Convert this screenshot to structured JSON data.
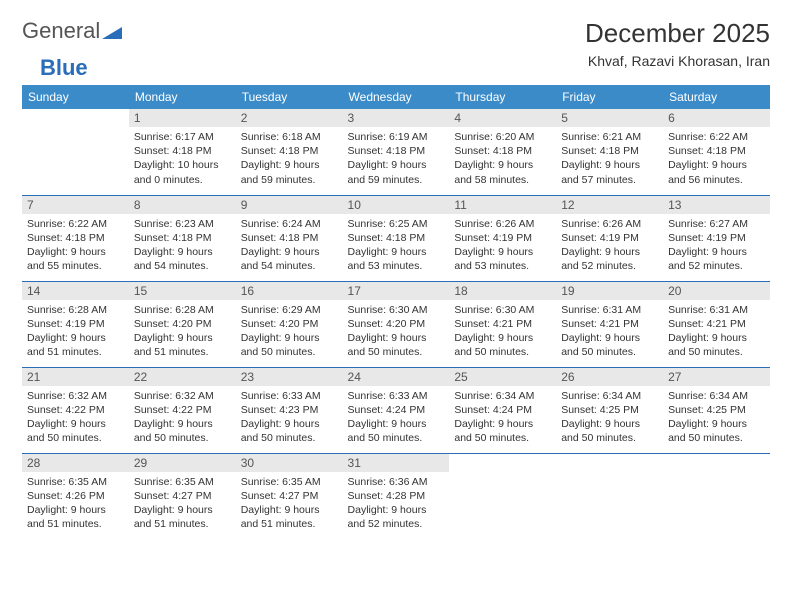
{
  "brand": {
    "part1": "General",
    "part2": "Blue"
  },
  "header": {
    "title": "December 2025",
    "location": "Khvaf, Razavi Khorasan, Iran"
  },
  "colors": {
    "header_bg": "#3b8bc9",
    "row_divider": "#2a6db8",
    "daynum_bg": "#e8e8e8",
    "text": "#333333"
  },
  "calendar": {
    "type": "table",
    "columns": [
      "Sunday",
      "Monday",
      "Tuesday",
      "Wednesday",
      "Thursday",
      "Friday",
      "Saturday"
    ],
    "weeks": [
      [
        null,
        {
          "n": "1",
          "sunrise": "6:17 AM",
          "sunset": "4:18 PM",
          "daylight": "10 hours and 0 minutes."
        },
        {
          "n": "2",
          "sunrise": "6:18 AM",
          "sunset": "4:18 PM",
          "daylight": "9 hours and 59 minutes."
        },
        {
          "n": "3",
          "sunrise": "6:19 AM",
          "sunset": "4:18 PM",
          "daylight": "9 hours and 59 minutes."
        },
        {
          "n": "4",
          "sunrise": "6:20 AM",
          "sunset": "4:18 PM",
          "daylight": "9 hours and 58 minutes."
        },
        {
          "n": "5",
          "sunrise": "6:21 AM",
          "sunset": "4:18 PM",
          "daylight": "9 hours and 57 minutes."
        },
        {
          "n": "6",
          "sunrise": "6:22 AM",
          "sunset": "4:18 PM",
          "daylight": "9 hours and 56 minutes."
        }
      ],
      [
        {
          "n": "7",
          "sunrise": "6:22 AM",
          "sunset": "4:18 PM",
          "daylight": "9 hours and 55 minutes."
        },
        {
          "n": "8",
          "sunrise": "6:23 AM",
          "sunset": "4:18 PM",
          "daylight": "9 hours and 54 minutes."
        },
        {
          "n": "9",
          "sunrise": "6:24 AM",
          "sunset": "4:18 PM",
          "daylight": "9 hours and 54 minutes."
        },
        {
          "n": "10",
          "sunrise": "6:25 AM",
          "sunset": "4:18 PM",
          "daylight": "9 hours and 53 minutes."
        },
        {
          "n": "11",
          "sunrise": "6:26 AM",
          "sunset": "4:19 PM",
          "daylight": "9 hours and 53 minutes."
        },
        {
          "n": "12",
          "sunrise": "6:26 AM",
          "sunset": "4:19 PM",
          "daylight": "9 hours and 52 minutes."
        },
        {
          "n": "13",
          "sunrise": "6:27 AM",
          "sunset": "4:19 PM",
          "daylight": "9 hours and 52 minutes."
        }
      ],
      [
        {
          "n": "14",
          "sunrise": "6:28 AM",
          "sunset": "4:19 PM",
          "daylight": "9 hours and 51 minutes."
        },
        {
          "n": "15",
          "sunrise": "6:28 AM",
          "sunset": "4:20 PM",
          "daylight": "9 hours and 51 minutes."
        },
        {
          "n": "16",
          "sunrise": "6:29 AM",
          "sunset": "4:20 PM",
          "daylight": "9 hours and 50 minutes."
        },
        {
          "n": "17",
          "sunrise": "6:30 AM",
          "sunset": "4:20 PM",
          "daylight": "9 hours and 50 minutes."
        },
        {
          "n": "18",
          "sunrise": "6:30 AM",
          "sunset": "4:21 PM",
          "daylight": "9 hours and 50 minutes."
        },
        {
          "n": "19",
          "sunrise": "6:31 AM",
          "sunset": "4:21 PM",
          "daylight": "9 hours and 50 minutes."
        },
        {
          "n": "20",
          "sunrise": "6:31 AM",
          "sunset": "4:21 PM",
          "daylight": "9 hours and 50 minutes."
        }
      ],
      [
        {
          "n": "21",
          "sunrise": "6:32 AM",
          "sunset": "4:22 PM",
          "daylight": "9 hours and 50 minutes."
        },
        {
          "n": "22",
          "sunrise": "6:32 AM",
          "sunset": "4:22 PM",
          "daylight": "9 hours and 50 minutes."
        },
        {
          "n": "23",
          "sunrise": "6:33 AM",
          "sunset": "4:23 PM",
          "daylight": "9 hours and 50 minutes."
        },
        {
          "n": "24",
          "sunrise": "6:33 AM",
          "sunset": "4:24 PM",
          "daylight": "9 hours and 50 minutes."
        },
        {
          "n": "25",
          "sunrise": "6:34 AM",
          "sunset": "4:24 PM",
          "daylight": "9 hours and 50 minutes."
        },
        {
          "n": "26",
          "sunrise": "6:34 AM",
          "sunset": "4:25 PM",
          "daylight": "9 hours and 50 minutes."
        },
        {
          "n": "27",
          "sunrise": "6:34 AM",
          "sunset": "4:25 PM",
          "daylight": "9 hours and 50 minutes."
        }
      ],
      [
        {
          "n": "28",
          "sunrise": "6:35 AM",
          "sunset": "4:26 PM",
          "daylight": "9 hours and 51 minutes."
        },
        {
          "n": "29",
          "sunrise": "6:35 AM",
          "sunset": "4:27 PM",
          "daylight": "9 hours and 51 minutes."
        },
        {
          "n": "30",
          "sunrise": "6:35 AM",
          "sunset": "4:27 PM",
          "daylight": "9 hours and 51 minutes."
        },
        {
          "n": "31",
          "sunrise": "6:36 AM",
          "sunset": "4:28 PM",
          "daylight": "9 hours and 52 minutes."
        },
        null,
        null,
        null
      ]
    ],
    "labels": {
      "sunrise": "Sunrise: ",
      "sunset": "Sunset: ",
      "daylight": "Daylight: "
    }
  }
}
